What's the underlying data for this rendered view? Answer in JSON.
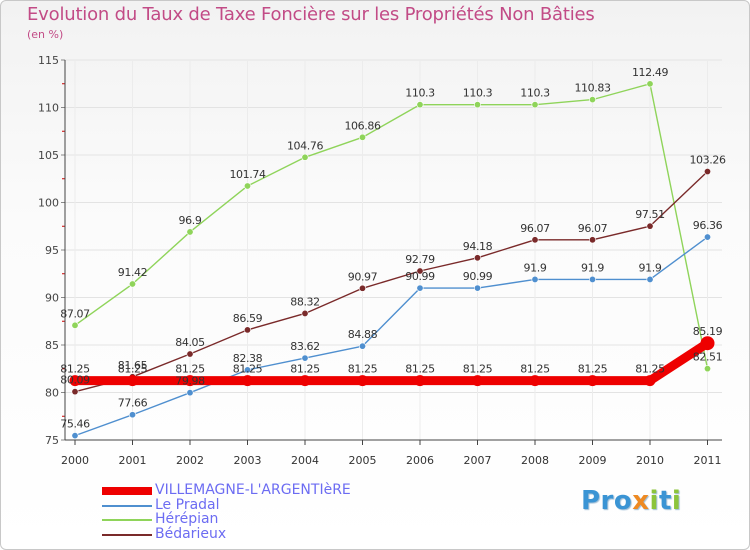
{
  "title": "Evolution du Taux de Taxe Foncière sur les Propriétés Non Bâties",
  "subtitle": "(en %)",
  "logo": {
    "text": "Proxiti"
  },
  "chart_data": {
    "type": "line",
    "x": [
      "2000",
      "2001",
      "2002",
      "2003",
      "2004",
      "2005",
      "2006",
      "2007",
      "2008",
      "2009",
      "2010",
      "2011"
    ],
    "ylim": [
      75,
      115
    ],
    "yticks": [
      75,
      80,
      85,
      90,
      95,
      100,
      105,
      110,
      115
    ],
    "grid": true,
    "legend_position": "bottom-left",
    "series": [
      {
        "name": "VILLEMAGNE-L'ARGENTIèRE",
        "color": "#ee0000",
        "values": [
          81.25,
          81.25,
          81.25,
          81.25,
          81.25,
          81.25,
          81.25,
          81.25,
          81.25,
          81.25,
          81.25,
          85.19
        ],
        "labels": [
          "81.25",
          "81.25",
          "81.25",
          "81.25",
          "81.25",
          "81.25",
          "81.25",
          "81.25",
          "81.25",
          "81.25",
          "81.25",
          "85.19"
        ]
      },
      {
        "name": "Le Pradal",
        "color": "#4f8fcf",
        "values": [
          75.46,
          77.66,
          79.98,
          82.38,
          83.62,
          84.88,
          90.99,
          90.99,
          91.9,
          91.9,
          91.9,
          96.36
        ],
        "labels": [
          "75.46",
          "77.66",
          "79.98",
          "82.38",
          "83.62",
          "84.88",
          "90.99",
          "90.99",
          "91.9",
          "91.9",
          "91.9",
          "96.36"
        ]
      },
      {
        "name": "Hérépian",
        "color": "#8fd45a",
        "values": [
          87.07,
          91.42,
          96.9,
          101.74,
          104.76,
          106.86,
          110.3,
          110.3,
          110.3,
          110.83,
          112.49,
          82.51
        ],
        "labels": [
          "87.07",
          "91.42",
          "96.9",
          "101.74",
          "104.76",
          "106.86",
          "110.3",
          "110.3",
          "110.3",
          "110.83",
          "112.49",
          "82.51"
        ]
      },
      {
        "name": "Bédarieux",
        "color": "#7a2a2a",
        "values": [
          80.09,
          81.65,
          84.05,
          86.59,
          88.32,
          90.97,
          92.79,
          94.18,
          96.07,
          96.07,
          97.51,
          103.26
        ],
        "labels": [
          "80.09",
          "81.65",
          "84.05",
          "86.59",
          "88.32",
          "90.97",
          "92.79",
          "94.18",
          "96.07",
          "96.07",
          "97.51",
          "103.26"
        ]
      }
    ]
  }
}
